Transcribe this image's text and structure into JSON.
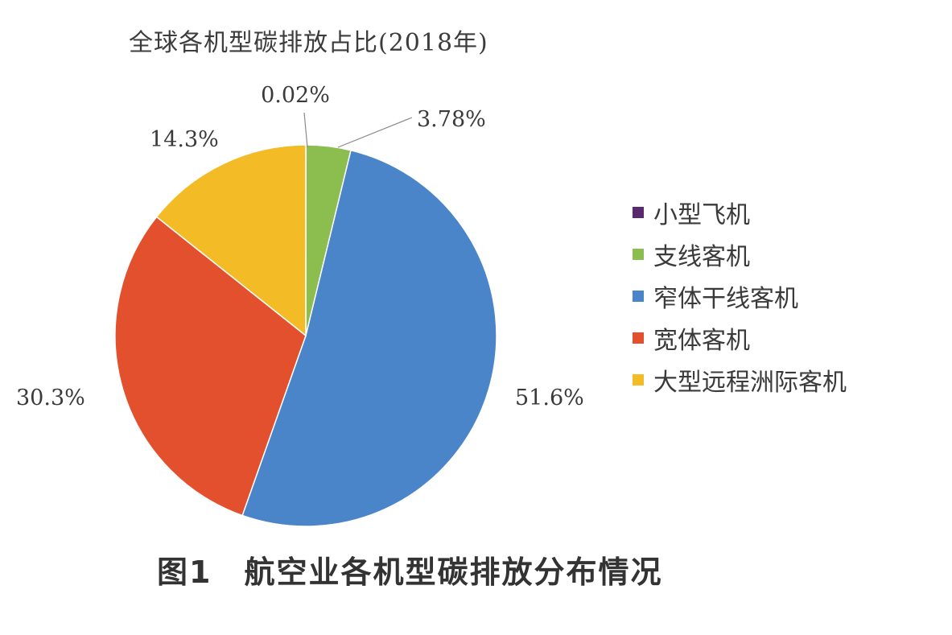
{
  "chart_data": {
    "type": "pie",
    "title": "全球各机型碳排放占比(2018年)",
    "categories": [
      "小型飞机",
      "支线客机",
      "窄体干线客机",
      "宽体客机",
      "大型远程洲际客机"
    ],
    "values": [
      0.02,
      3.78,
      51.6,
      30.3,
      14.3
    ],
    "labels": [
      "0.02%",
      "3.78%",
      "51.6%",
      "30.3%",
      "14.3%"
    ],
    "colors": [
      "#5b2a6e",
      "#8cbd4f",
      "#4a84c9",
      "#e2502d",
      "#f3bb26"
    ],
    "legend_position": "right",
    "start_angle": "top",
    "direction": "clockwise"
  },
  "caption": "图1　航空业各机型碳排放分布情况"
}
